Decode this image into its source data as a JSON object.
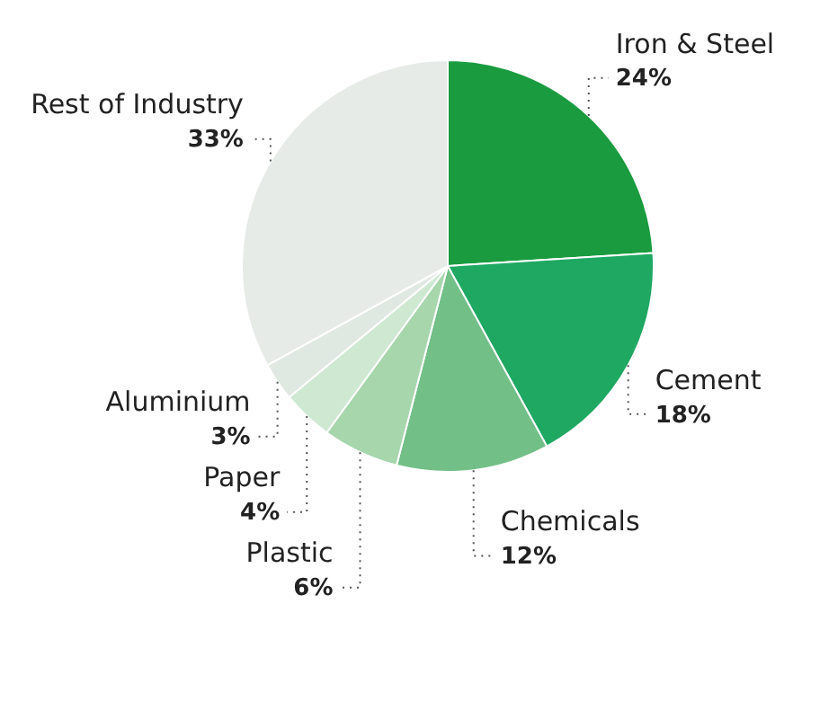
{
  "chart_data": {
    "type": "pie",
    "categories": [
      "Iron & Steel",
      "Cement",
      "Chemicals",
      "Plastic",
      "Paper",
      "Aluminium",
      "Rest of Industry"
    ],
    "values": [
      24,
      18,
      12,
      6,
      4,
      3,
      33
    ],
    "value_labels": [
      "24%",
      "18%",
      "12%",
      "6%",
      "4%",
      "3%",
      "33%"
    ],
    "colors": [
      "#1a9b3f",
      "#1fa862",
      "#72bf87",
      "#a7d6ad",
      "#cfe8d2",
      "#dfe8e1",
      "#e6ebe7"
    ],
    "legend": false
  }
}
